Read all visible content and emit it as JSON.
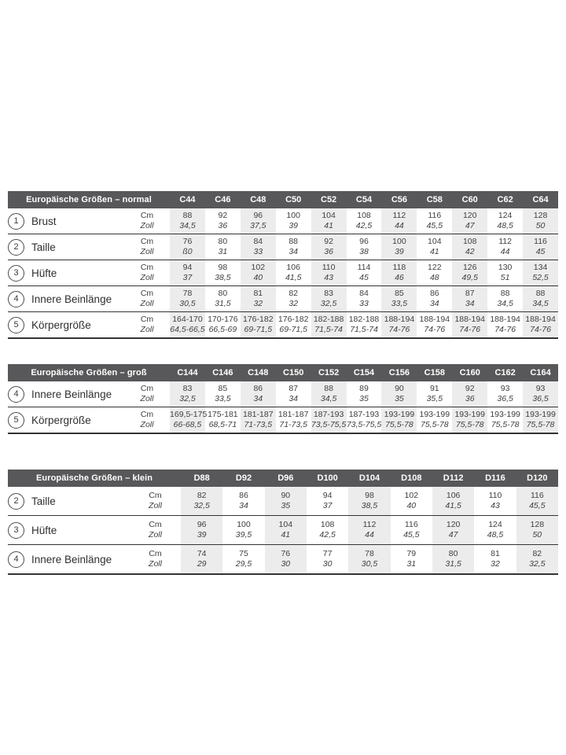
{
  "colors": {
    "header_bar": "#58585a",
    "header_text": "#ffffff",
    "column_shade": "#ececec",
    "rule_line": "#343436",
    "body_text": "#404042"
  },
  "units": {
    "cm": "Cm",
    "zoll": "Zoll"
  },
  "tables": [
    {
      "title": "Europäische Größen – normal",
      "columns": [
        "C44",
        "C46",
        "C48",
        "C50",
        "C52",
        "C54",
        "C56",
        "C58",
        "C60",
        "C62",
        "C64"
      ],
      "rows": [
        {
          "num": "1",
          "label": "Brust",
          "cm": [
            "88",
            "92",
            "96",
            "100",
            "104",
            "108",
            "112",
            "116",
            "120",
            "124",
            "128"
          ],
          "zoll": [
            "34,5",
            "36",
            "37,5",
            "39",
            "41",
            "42,5",
            "44",
            "45,5",
            "47",
            "48,5",
            "50"
          ]
        },
        {
          "num": "2",
          "label": "Taille",
          "cm": [
            "76",
            "80",
            "84",
            "88",
            "92",
            "96",
            "100",
            "104",
            "108",
            "112",
            "116"
          ],
          "zoll": [
            "ß0",
            "31",
            "33",
            "34",
            "36",
            "38",
            "39",
            "41",
            "42",
            "44",
            "45"
          ]
        },
        {
          "num": "3",
          "label": "Hüfte",
          "cm": [
            "94",
            "98",
            "102",
            "106",
            "110",
            "114",
            "118",
            "122",
            "126",
            "130",
            "134"
          ],
          "zoll": [
            "37",
            "38,5",
            "40",
            "41,5",
            "43",
            "45",
            "46",
            "48",
            "49,5",
            "51",
            "52,5"
          ]
        },
        {
          "num": "4",
          "label": "Innere Beinlänge",
          "cm": [
            "78",
            "80",
            "81",
            "82",
            "83",
            "84",
            "85",
            "86",
            "87",
            "88",
            "88"
          ],
          "zoll": [
            "30,5",
            "31,5",
            "32",
            "32",
            "32,5",
            "33",
            "33,5",
            "34",
            "34",
            "34,5",
            "34,5"
          ]
        },
        {
          "num": "5",
          "label": "Körpergröße",
          "cm": [
            "164-170",
            "170-176",
            "176-182",
            "176-182",
            "182-188",
            "182-188",
            "188-194",
            "188-194",
            "188-194",
            "188-194",
            "188-194"
          ],
          "zoll": [
            "64,5-66,5",
            "66,5-69",
            "69-71,5",
            "69-71,5",
            "71,5-74",
            "71,5-74",
            "74-76",
            "74-76",
            "74-76",
            "74-76",
            "74-76"
          ]
        }
      ]
    },
    {
      "title": "Europäische Größen – groß",
      "columns": [
        "C144",
        "C146",
        "C148",
        "C150",
        "C152",
        "C154",
        "C156",
        "C158",
        "C160",
        "C162",
        "C164"
      ],
      "rows": [
        {
          "num": "4",
          "label": "Innere Beinlänge",
          "cm": [
            "83",
            "85",
            "86",
            "87",
            "88",
            "89",
            "90",
            "91",
            "92",
            "93",
            "93"
          ],
          "zoll": [
            "32,5",
            "33,5",
            "34",
            "34",
            "34,5",
            "35",
            "35",
            "35,5",
            "36",
            "36,5",
            "36,5"
          ]
        },
        {
          "num": "5",
          "label": "Körpergröße",
          "cm": [
            "169,5-175",
            "175-181",
            "181-187",
            "181-187",
            "187-193",
            "187-193",
            "193-199",
            "193-199",
            "193-199",
            "193-199",
            "193-199"
          ],
          "zoll": [
            "66-68,5",
            "68,5-71",
            "71-73,5",
            "71-73,5",
            "73,5-75,5",
            "73,5-75,5",
            "75,5-78",
            "75,5-78",
            "75,5-78",
            "75,5-78",
            "75,5-78"
          ]
        }
      ]
    },
    {
      "title": "Europäische Größen – klein",
      "columns": [
        "D88",
        "D92",
        "D96",
        "D100",
        "D104",
        "D108",
        "D112",
        "D116",
        "D120"
      ],
      "rows": [
        {
          "num": "2",
          "label": "Taille",
          "cm": [
            "82",
            "86",
            "90",
            "94",
            "98",
            "102",
            "106",
            "110",
            "116"
          ],
          "zoll": [
            "32,5",
            "34",
            "35",
            "37",
            "38,5",
            "40",
            "41,5",
            "43",
            "45,5"
          ]
        },
        {
          "num": "3",
          "label": "Hüfte",
          "cm": [
            "96",
            "100",
            "104",
            "108",
            "112",
            "116",
            "120",
            "124",
            "128"
          ],
          "zoll": [
            "39",
            "39,5",
            "41",
            "42,5",
            "44",
            "45,5",
            "47",
            "48,5",
            "50"
          ]
        },
        {
          "num": "4",
          "label": "Innere Beinlänge",
          "cm": [
            "74",
            "75",
            "76",
            "77",
            "78",
            "79",
            "80",
            "81",
            "82"
          ],
          "zoll": [
            "29",
            "29,5",
            "30",
            "30",
            "30,5",
            "31",
            "31,5",
            "32",
            "32,5"
          ]
        }
      ]
    }
  ]
}
